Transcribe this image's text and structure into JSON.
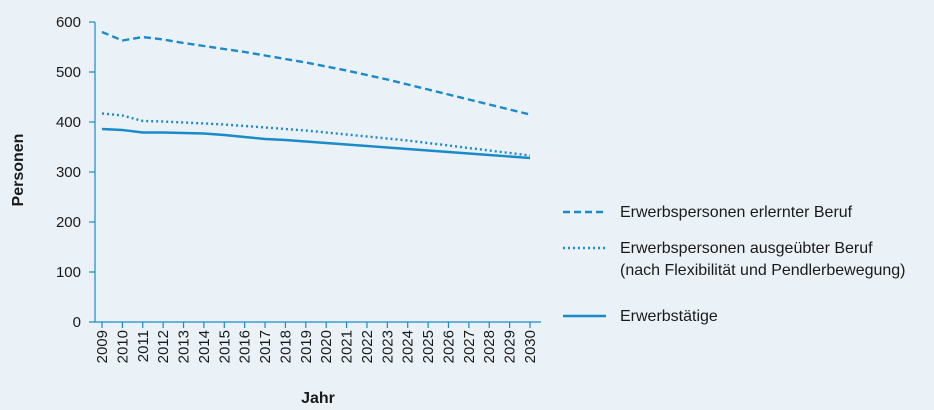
{
  "chart_data": {
    "type": "line",
    "xlabel": "Jahr",
    "ylabel": "Personen",
    "ylim": [
      0,
      600
    ],
    "yticks": [
      0,
      100,
      200,
      300,
      400,
      500,
      600
    ],
    "legend_position": "right",
    "grid": false,
    "categories": [
      "2009",
      "2010",
      "2011",
      "2012",
      "2013",
      "2014",
      "2015",
      "2016",
      "2017",
      "2018",
      "2019",
      "2020",
      "2021",
      "2022",
      "2023",
      "2024",
      "2025",
      "2026",
      "2027",
      "2028",
      "2029",
      "2030"
    ],
    "series": [
      {
        "name": "Erwerbspersonen erlernter Beruf",
        "style": "dashed",
        "color": "#1b8ac9",
        "values": [
          580,
          563,
          570,
          565,
          558,
          552,
          546,
          540,
          533,
          526,
          519,
          511,
          503,
          494,
          485,
          475,
          465,
          455,
          445,
          435,
          425,
          415
        ]
      },
      {
        "name": "Erwerbspersonen ausgeübter Beruf",
        "name_line2": "(nach Flexibilität und Pendlerbewegung)",
        "style": "dotted",
        "color": "#1b8ac9",
        "values": [
          417,
          413,
          402,
          401,
          399,
          397,
          395,
          392,
          389,
          386,
          383,
          379,
          375,
          371,
          367,
          363,
          358,
          353,
          348,
          343,
          338,
          333
        ]
      },
      {
        "name": "Erwerbstätige",
        "style": "solid",
        "color": "#1b8ac9",
        "values": [
          386,
          384,
          379,
          379,
          378,
          377,
          374,
          370,
          366,
          364,
          361,
          358,
          355,
          352,
          349,
          346,
          343,
          340,
          337,
          334,
          331,
          328
        ]
      }
    ]
  }
}
